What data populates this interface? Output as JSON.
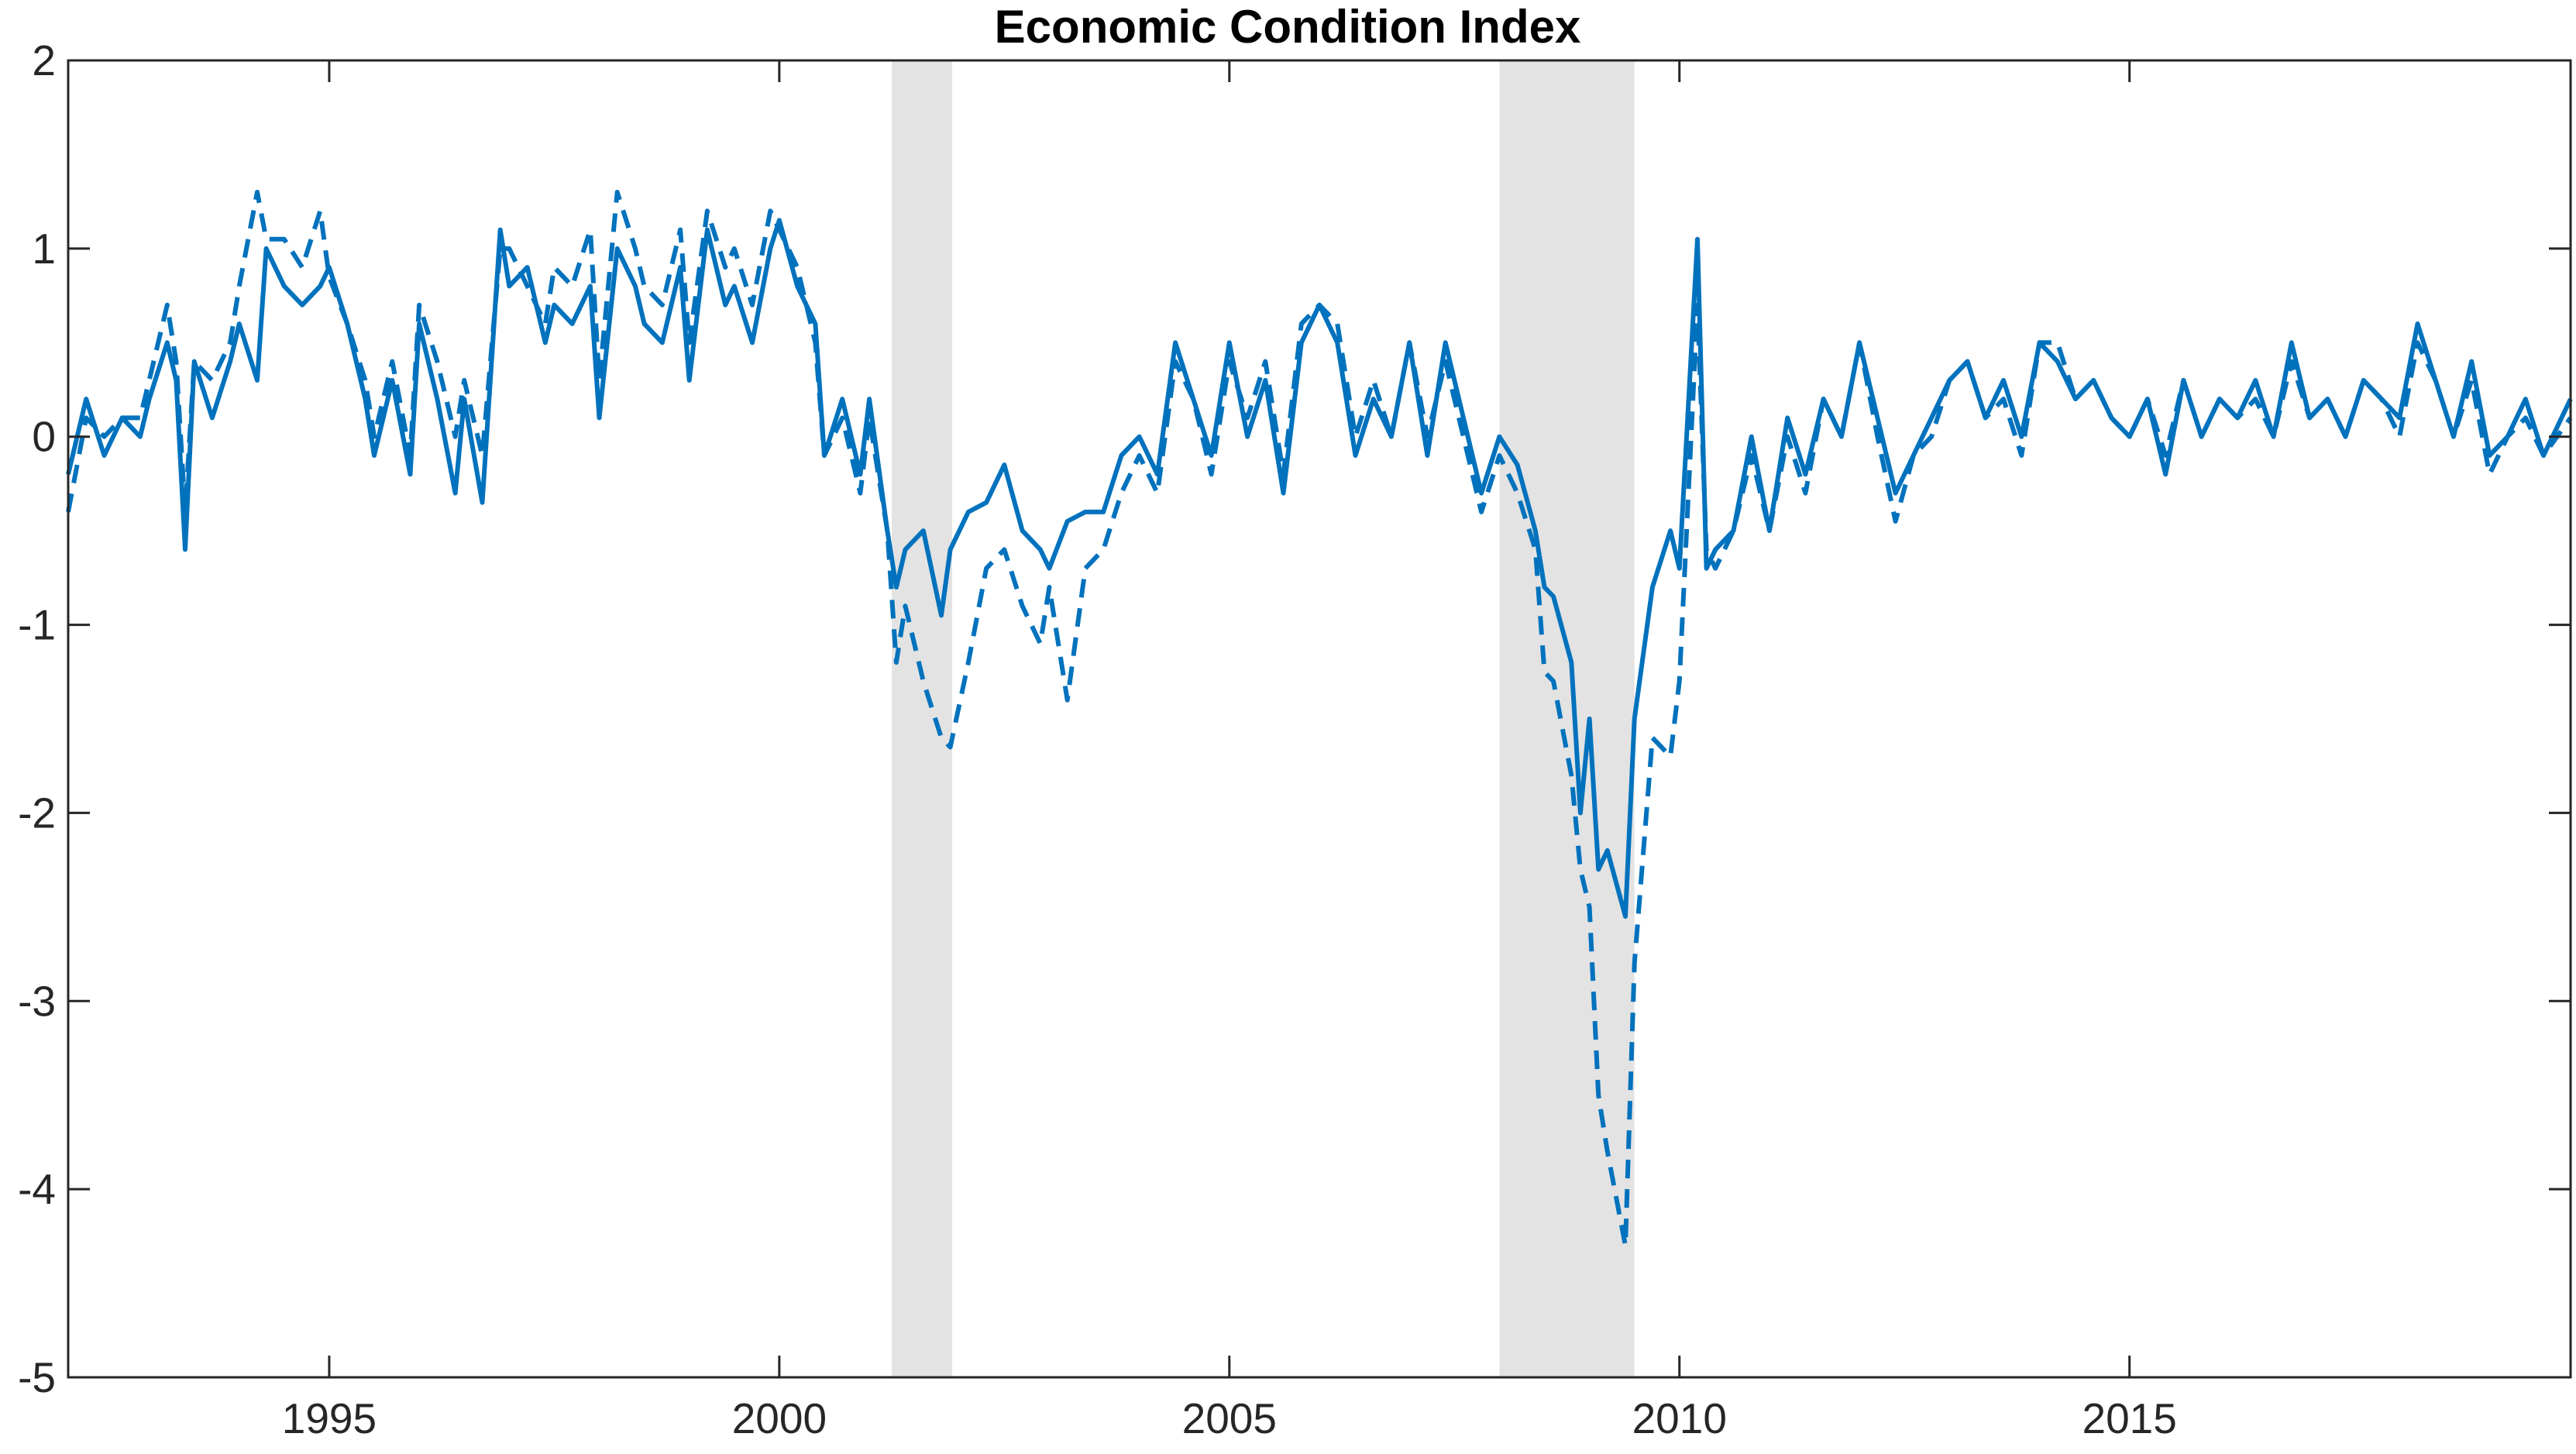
{
  "chart_data": {
    "type": "line",
    "title": "Economic Condition Index",
    "xlabel": "",
    "ylabel": "",
    "xlim": [
      1992.1,
      2019.9
    ],
    "ylim": [
      -5,
      2
    ],
    "x_ticks": [
      1995,
      2000,
      2005,
      2010,
      2015
    ],
    "x_tick_labels": [
      "1995",
      "2000",
      "2005",
      "2010",
      "2015"
    ],
    "y_ticks": [
      2,
      1,
      0,
      -1,
      -2,
      -3,
      -4,
      -5
    ],
    "y_tick_labels": [
      "2",
      "1",
      "0",
      "-1",
      "-2",
      "-3",
      "-4",
      "-5"
    ],
    "grid": false,
    "legend": "none",
    "recession_bands": [
      {
        "start": 2001.25,
        "end": 2001.92
      },
      {
        "start": 2008.0,
        "end": 2009.5
      }
    ],
    "colors": {
      "series": "#0072BD",
      "band": "#E3E3E3",
      "axis": "#262626"
    },
    "series": [
      {
        "style": "solid",
        "x": [
          1992.1,
          1992.3,
          1992.5,
          1992.7,
          1992.9,
          1993.0,
          1993.2,
          1993.3,
          1993.4,
          1993.5,
          1993.7,
          1993.9,
          1994.0,
          1994.2,
          1994.3,
          1994.5,
          1994.7,
          1994.9,
          1995.0,
          1995.2,
          1995.4,
          1995.5,
          1995.7,
          1995.9,
          1996.0,
          1996.2,
          1996.4,
          1996.5,
          1996.7,
          1996.9,
          1997.0,
          1997.2,
          1997.4,
          1997.5,
          1997.7,
          1997.9,
          1998.0,
          1998.2,
          1998.4,
          1998.5,
          1998.7,
          1998.9,
          1999.0,
          1999.2,
          1999.4,
          1999.5,
          1999.7,
          1999.9,
          2000.0,
          2000.2,
          2000.4,
          2000.5,
          2000.7,
          2000.9,
          2001.0,
          2001.2,
          2001.3,
          2001.4,
          2001.6,
          2001.8,
          2001.9,
          2002.1,
          2002.3,
          2002.5,
          2002.7,
          2002.9,
          2003.0,
          2003.2,
          2003.4,
          2003.6,
          2003.8,
          2004.0,
          2004.2,
          2004.4,
          2004.6,
          2004.8,
          2005.0,
          2005.2,
          2005.4,
          2005.6,
          2005.8,
          2006.0,
          2006.2,
          2006.4,
          2006.6,
          2006.8,
          2007.0,
          2007.2,
          2007.4,
          2007.6,
          2007.8,
          2008.0,
          2008.2,
          2008.4,
          2008.5,
          2008.6,
          2008.8,
          2008.9,
          2009.0,
          2009.1,
          2009.2,
          2009.4,
          2009.5,
          2009.7,
          2009.9,
          2010.0,
          2010.2,
          2010.3,
          2010.4,
          2010.6,
          2010.8,
          2011.0,
          2011.2,
          2011.4,
          2011.6,
          2011.8,
          2012.0,
          2012.2,
          2012.4,
          2012.6,
          2012.8,
          2013.0,
          2013.2,
          2013.4,
          2013.6,
          2013.8,
          2014.0,
          2014.2,
          2014.4,
          2014.6,
          2014.8,
          2015.0,
          2015.2,
          2015.4,
          2015.6,
          2015.8,
          2016.0,
          2016.2,
          2016.4,
          2016.6,
          2016.8,
          2017.0,
          2017.2,
          2017.4,
          2017.6,
          2017.8,
          2018.0,
          2018.2,
          2018.4,
          2018.6,
          2018.8,
          2019.0,
          2019.2,
          2019.4,
          2019.6,
          2019.9
        ],
        "values": [
          -0.2,
          0.2,
          -0.1,
          0.1,
          0.0,
          0.2,
          0.5,
          0.3,
          -0.6,
          0.4,
          0.1,
          0.4,
          0.6,
          0.3,
          1.0,
          0.8,
          0.7,
          0.8,
          0.9,
          0.6,
          0.2,
          -0.1,
          0.3,
          -0.2,
          0.6,
          0.2,
          -0.3,
          0.2,
          -0.35,
          1.1,
          0.8,
          0.9,
          0.5,
          0.7,
          0.6,
          0.8,
          0.1,
          1.0,
          0.8,
          0.6,
          0.5,
          0.9,
          0.3,
          1.1,
          0.7,
          0.8,
          0.5,
          1.0,
          1.15,
          0.8,
          0.6,
          -0.1,
          0.2,
          -0.2,
          0.2,
          -0.5,
          -0.8,
          -0.6,
          -0.5,
          -0.95,
          -0.6,
          -0.4,
          -0.35,
          -0.15,
          -0.5,
          -0.6,
          -0.7,
          -0.45,
          -0.4,
          -0.4,
          -0.1,
          0.0,
          -0.2,
          0.5,
          0.2,
          -0.1,
          0.5,
          0.0,
          0.3,
          -0.3,
          0.5,
          0.7,
          0.5,
          -0.1,
          0.2,
          0.0,
          0.5,
          -0.1,
          0.5,
          0.1,
          -0.3,
          0.0,
          -0.15,
          -0.5,
          -0.8,
          -0.85,
          -1.2,
          -2.0,
          -1.5,
          -2.3,
          -2.2,
          -2.55,
          -1.5,
          -0.8,
          -0.5,
          -0.7,
          1.05,
          -0.7,
          -0.6,
          -0.5,
          0.0,
          -0.5,
          0.1,
          -0.2,
          0.2,
          0.0,
          0.5,
          0.1,
          -0.3,
          -0.1,
          0.1,
          0.3,
          0.4,
          0.1,
          0.3,
          0.0,
          0.5,
          0.4,
          0.2,
          0.3,
          0.1,
          0.0,
          0.2,
          -0.2,
          0.3,
          0.0,
          0.2,
          0.1,
          0.3,
          0.0,
          0.5,
          0.1,
          0.2,
          0.0,
          0.3,
          0.2,
          0.1,
          0.6,
          0.3,
          0.0,
          0.4,
          -0.1,
          0.0,
          0.2,
          -0.1,
          0.2
        ]
      },
      {
        "style": "dashed",
        "x": [
          1992.1,
          1992.3,
          1992.5,
          1992.7,
          1992.9,
          1993.0,
          1993.2,
          1993.3,
          1993.4,
          1993.5,
          1993.7,
          1993.9,
          1994.0,
          1994.2,
          1994.3,
          1994.5,
          1994.7,
          1994.9,
          1995.0,
          1995.2,
          1995.4,
          1995.5,
          1995.7,
          1995.9,
          1996.0,
          1996.2,
          1996.4,
          1996.5,
          1996.7,
          1996.9,
          1997.0,
          1997.2,
          1997.4,
          1997.5,
          1997.7,
          1997.9,
          1998.0,
          1998.2,
          1998.4,
          1998.5,
          1998.7,
          1998.9,
          1999.0,
          1999.2,
          1999.4,
          1999.5,
          1999.7,
          1999.9,
          2000.0,
          2000.2,
          2000.4,
          2000.5,
          2000.7,
          2000.9,
          2001.0,
          2001.2,
          2001.3,
          2001.4,
          2001.6,
          2001.8,
          2001.9,
          2002.1,
          2002.3,
          2002.5,
          2002.7,
          2002.9,
          2003.0,
          2003.2,
          2003.4,
          2003.6,
          2003.8,
          2004.0,
          2004.2,
          2004.4,
          2004.6,
          2004.8,
          2005.0,
          2005.2,
          2005.4,
          2005.6,
          2005.8,
          2006.0,
          2006.2,
          2006.4,
          2006.6,
          2006.8,
          2007.0,
          2007.2,
          2007.4,
          2007.6,
          2007.8,
          2008.0,
          2008.2,
          2008.4,
          2008.5,
          2008.6,
          2008.8,
          2008.9,
          2009.0,
          2009.1,
          2009.2,
          2009.4,
          2009.5,
          2009.7,
          2009.9,
          2010.0,
          2010.2,
          2010.3,
          2010.4,
          2010.6,
          2010.8,
          2011.0,
          2011.2,
          2011.4,
          2011.6,
          2011.8,
          2012.0,
          2012.2,
          2012.4,
          2012.6,
          2012.8,
          2013.0,
          2013.2,
          2013.4,
          2013.6,
          2013.8,
          2014.0,
          2014.2,
          2014.4,
          2014.6,
          2014.8,
          2015.0,
          2015.2,
          2015.4,
          2015.6,
          2015.8,
          2016.0,
          2016.2,
          2016.4,
          2016.6,
          2016.8,
          2017.0,
          2017.2,
          2017.4,
          2017.6,
          2017.8,
          2018.0,
          2018.2,
          2018.4,
          2018.6,
          2018.8,
          2019.0,
          2019.2,
          2019.4,
          2019.6,
          2019.9
        ],
        "values": [
          -0.4,
          0.1,
          0.0,
          0.1,
          0.1,
          0.3,
          0.7,
          0.4,
          -0.4,
          0.4,
          0.3,
          0.5,
          0.8,
          1.3,
          1.05,
          1.05,
          0.9,
          1.2,
          0.85,
          0.6,
          0.3,
          0.0,
          0.4,
          -0.1,
          0.7,
          0.4,
          0.0,
          0.3,
          -0.1,
          1.0,
          1.0,
          0.8,
          0.6,
          0.9,
          0.8,
          1.1,
          0.3,
          1.3,
          1.0,
          0.8,
          0.7,
          1.1,
          0.5,
          1.2,
          0.9,
          1.0,
          0.7,
          1.2,
          1.1,
          0.9,
          0.5,
          -0.1,
          0.1,
          -0.3,
          0.1,
          -0.5,
          -1.2,
          -0.9,
          -1.3,
          -1.6,
          -1.65,
          -1.2,
          -0.7,
          -0.6,
          -0.9,
          -1.1,
          -0.8,
          -1.4,
          -0.7,
          -0.6,
          -0.3,
          -0.1,
          -0.3,
          0.4,
          0.2,
          -0.2,
          0.4,
          0.1,
          0.4,
          -0.2,
          0.6,
          0.7,
          0.6,
          0.0,
          0.3,
          0.0,
          0.5,
          0.0,
          0.4,
          0.0,
          -0.4,
          -0.1,
          -0.3,
          -0.6,
          -1.25,
          -1.3,
          -1.8,
          -2.3,
          -2.5,
          -3.5,
          -3.8,
          -4.3,
          -2.8,
          -1.6,
          -1.7,
          -1.3,
          0.7,
          -0.6,
          -0.7,
          -0.5,
          -0.1,
          -0.5,
          0.0,
          -0.3,
          0.2,
          0.0,
          0.5,
          0.0,
          -0.45,
          -0.1,
          0.0,
          0.3,
          0.4,
          0.1,
          0.2,
          -0.1,
          0.5,
          0.5,
          0.2,
          0.3,
          0.1,
          0.0,
          0.2,
          -0.1,
          0.3,
          0.0,
          0.2,
          0.1,
          0.2,
          0.0,
          0.4,
          0.1,
          0.2,
          0.0,
          0.3,
          0.2,
          0.0,
          0.5,
          0.3,
          0.0,
          0.3,
          -0.2,
          0.0,
          0.1,
          -0.1,
          0.1
        ]
      }
    ]
  }
}
